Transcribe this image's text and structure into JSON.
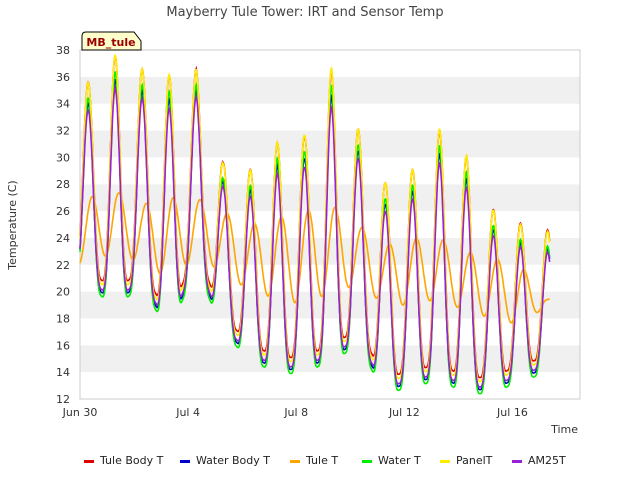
{
  "chart_data": {
    "type": "line",
    "title": "Mayberry Tule Tower: IRT and Sensor Temp",
    "xlabel": "Time",
    "ylabel": "Temperature (C)",
    "site_label": "MB_tule",
    "ylim": [
      12,
      38
    ],
    "yticks": [
      12,
      14,
      16,
      18,
      20,
      22,
      24,
      26,
      28,
      30,
      32,
      34,
      36,
      38
    ],
    "xlim_days": [
      0,
      18.5
    ],
    "xticks": [
      {
        "label": "Jun 30",
        "day": 0
      },
      {
        "label": "Jul 4",
        "day": 4
      },
      {
        "label": "Jul 8",
        "day": 8
      },
      {
        "label": "Jul 12",
        "day": 12
      },
      {
        "label": "Jul 16",
        "day": 16
      }
    ],
    "grid": "horizontal bands",
    "legend_position": "bottom",
    "x_days": [
      0.3,
      1.3,
      2.3,
      3.3,
      4.3,
      5.3,
      6.3,
      7.3,
      8.3,
      9.3,
      10.3,
      11.3,
      12.3,
      13.3,
      14.3,
      15.3,
      16.3,
      17.3
    ],
    "daily_max": [
      35,
      37,
      36,
      35.5,
      36,
      29,
      28.5,
      30.5,
      31,
      36,
      31.5,
      27.5,
      28.5,
      31.5,
      29.5,
      25.5,
      24.5,
      24
    ],
    "daily_min": [
      21,
      19.5,
      21,
      17.5,
      22.5,
      17.5,
      15.5,
      14.5,
      14.5,
      15.5,
      16.5,
      13,
      13.5,
      14,
      13,
      13,
      14,
      14.5
    ],
    "tule_max": [
      27,
      27.5,
      26.5,
      27,
      27,
      26,
      25,
      25.5,
      26,
      26.5,
      25,
      23.5,
      24,
      24,
      23,
      22.5,
      22,
      19.5
    ],
    "tule_min": [
      22,
      23,
      22,
      21,
      22.5,
      21.5,
      20,
      19.5,
      19,
      20,
      20.5,
      19,
      19,
      19.5,
      18.5,
      18,
      17.5,
      19
    ],
    "series": [
      {
        "name": "Tule Body T",
        "color": "#e00000",
        "offset": 0.6,
        "scale": 1.0
      },
      {
        "name": "Water Body T",
        "color": "#0000cc",
        "offset": -0.3,
        "scale": 0.95
      },
      {
        "name": "Tule T",
        "color": "#ffa500",
        "offset": 0,
        "scale": 1.0
      },
      {
        "name": "Water T",
        "color": "#00ee00",
        "offset": -0.6,
        "scale": 1.0
      },
      {
        "name": "PanelT",
        "color": "#ffee00",
        "offset": 0.3,
        "scale": 1.02
      },
      {
        "name": "AM25T",
        "color": "#9a1fd6",
        "offset": -0.1,
        "scale": 0.9
      }
    ]
  }
}
